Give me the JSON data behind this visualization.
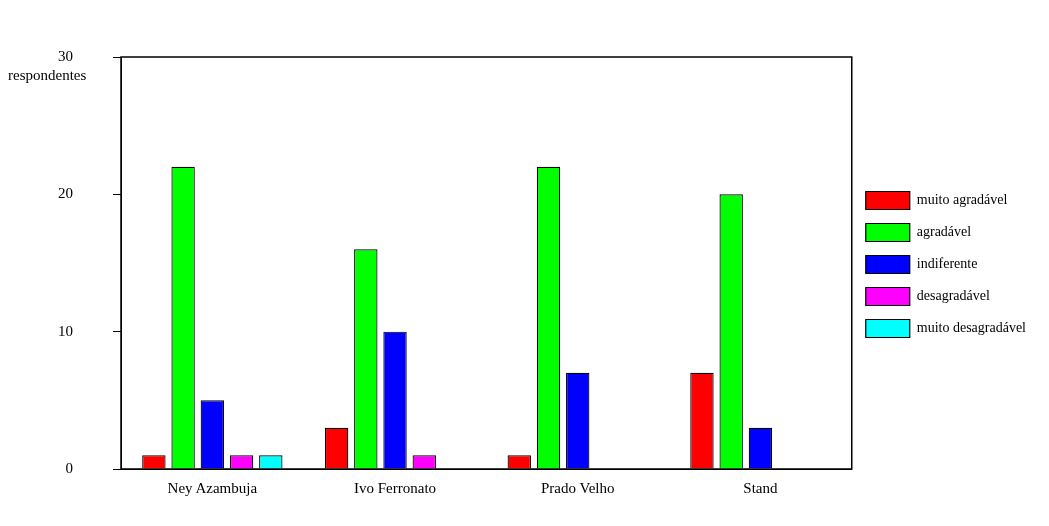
{
  "chart_data": {
    "type": "bar",
    "ylabel": "respondentes",
    "categories": [
      "Ney Azambuja",
      "Ivo Ferronato",
      "Prado Velho",
      "Stand"
    ],
    "series": [
      {
        "name": "muito agradável",
        "color": "#ff0000",
        "values": [
          1,
          3,
          1,
          7
        ]
      },
      {
        "name": "agradável",
        "color": "#00ff00",
        "values": [
          22,
          16,
          22,
          20
        ]
      },
      {
        "name": "indiferente",
        "color": "#0000ff",
        "values": [
          5,
          10,
          7,
          3
        ]
      },
      {
        "name": "desagradável",
        "color": "#ff00ff",
        "values": [
          1,
          1,
          null,
          null
        ]
      },
      {
        "name": "muito desagradável",
        "color": "#00ffff",
        "values": [
          1,
          null,
          null,
          null
        ]
      }
    ],
    "ylim": [
      0,
      30
    ],
    "yticks": [
      0,
      10,
      20,
      30
    ],
    "grid": false,
    "legend": "right"
  }
}
